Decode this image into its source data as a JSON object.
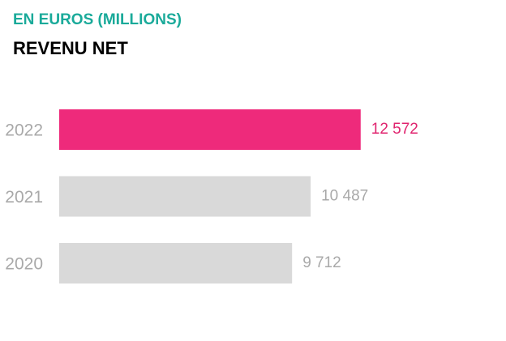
{
  "chart_data": {
    "type": "hbar",
    "subtitle": "EN EUROS (MILLIONS)",
    "title": "REVENU NET",
    "categories": [
      "2022",
      "2021",
      "2020"
    ],
    "values": [
      12572,
      10487,
      9712
    ],
    "value_labels": [
      "12 572",
      "10 487",
      "9 712"
    ],
    "colors": [
      "#ee2a7b",
      "#d9d9d9",
      "#d9d9d9"
    ],
    "label_colors": [
      "#e0246f",
      "#a9a9a9",
      "#a9a9a9"
    ],
    "xlim": [
      0,
      14000
    ]
  }
}
